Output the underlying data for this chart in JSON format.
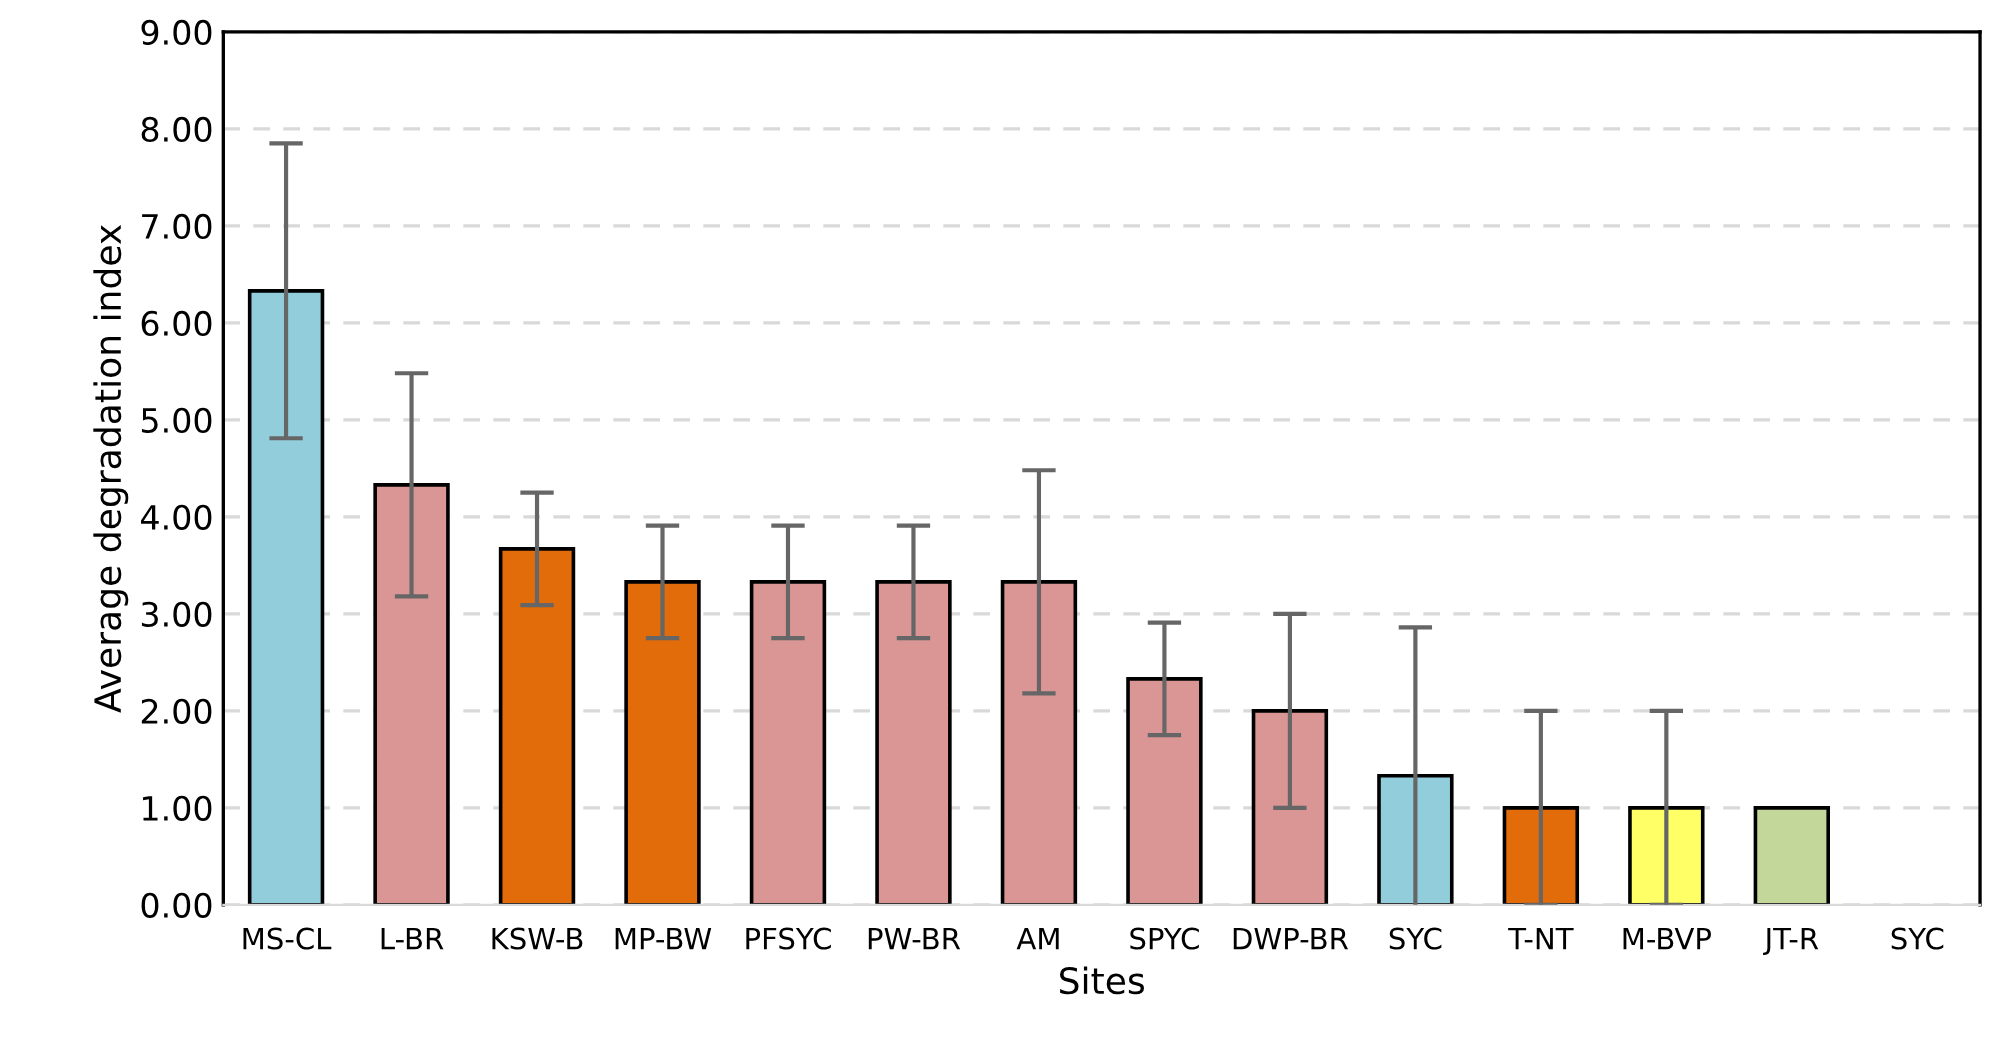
{
  "chart_data": {
    "type": "bar",
    "xlabel": "Sites",
    "ylabel": "Average degradation index",
    "categories": [
      "MS-CL",
      "L-BR",
      "KSW-B",
      "MP-BW",
      "PFSYC",
      "PW-BR",
      "AM",
      "SPYC",
      "DWP-BR",
      "SYC",
      "T-NT",
      "M-BVP",
      "JT-R",
      "SYC"
    ],
    "values": [
      6.33,
      4.33,
      3.67,
      3.33,
      3.33,
      3.33,
      3.33,
      2.33,
      2.0,
      1.33,
      1.0,
      1.0,
      1.0,
      null
    ],
    "errors": [
      1.52,
      1.15,
      0.58,
      0.58,
      0.58,
      0.58,
      1.15,
      0.58,
      1.0,
      1.53,
      1.0,
      1.0,
      null,
      null
    ],
    "colors": [
      "#92cddc",
      "#da9694",
      "#e26b0a",
      "#e26b0a",
      "#da9694",
      "#da9694",
      "#da9694",
      "#da9694",
      "#da9694",
      "#92cddc",
      "#e26b0a",
      "#ffff66",
      "#c4d79b",
      "#c4d79b"
    ],
    "ylim": [
      0,
      9
    ],
    "yticks": [
      {
        "value": 0,
        "label": "0.00"
      },
      {
        "value": 1,
        "label": "1.00"
      },
      {
        "value": 2,
        "label": "2.00"
      },
      {
        "value": 3,
        "label": "3.00"
      },
      {
        "value": 4,
        "label": "4.00"
      },
      {
        "value": 5,
        "label": "5.00"
      },
      {
        "value": 6,
        "label": "6.00"
      },
      {
        "value": 7,
        "label": "7.00"
      },
      {
        "value": 8,
        "label": "8.00"
      },
      {
        "value": 9,
        "label": "9.00"
      }
    ],
    "grid": "y"
  }
}
